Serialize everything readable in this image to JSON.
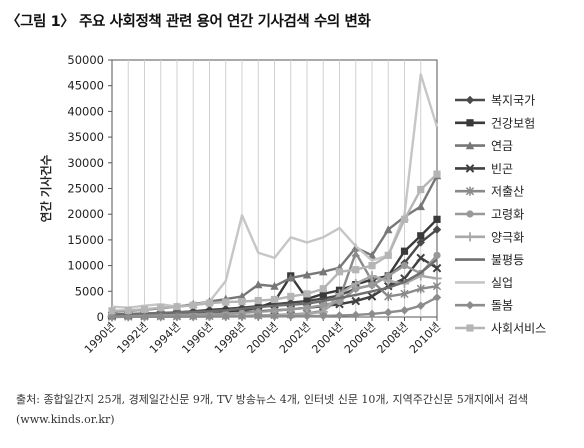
{
  "figure": {
    "title": "〈그림 1〉 주요 사회정책 관련 용어 연간 기사검색 수의 변화",
    "source_line1": "출처: 종합일간지 25개, 경제일간신문 9개, TV 방송뉴스 4개, 인터넷 신문 10개, 지역주간신문 5개지에서 검색",
    "source_line2": "(www.kinds.or.kr)"
  },
  "chart_data": {
    "type": "line",
    "ylabel": "연간 기사건수",
    "xlabel": "",
    "ylim": [
      0,
      50000
    ],
    "yticks": [
      "0",
      "5000",
      "10000",
      "15000",
      "20000",
      "25000",
      "30000",
      "35000",
      "40000",
      "45000",
      "50000"
    ],
    "xticks": [
      "1990년",
      "1992년",
      "1994년",
      "1996년",
      "1998년",
      "2000년",
      "2002년",
      "2004년",
      "2006년",
      "2008년",
      "2010년"
    ],
    "x": [
      1990,
      1991,
      1992,
      1993,
      1994,
      1995,
      1996,
      1997,
      1998,
      1999,
      2000,
      2001,
      2002,
      2003,
      2004,
      2005,
      2006,
      2007,
      2008,
      2009,
      2010
    ],
    "grid": "vertical",
    "legend": "right",
    "series": [
      {
        "name": "복지국가",
        "color": "#4a4a4a",
        "marker": "diamond",
        "values": [
          400,
          500,
          600,
          700,
          900,
          1100,
          1400,
          1600,
          1800,
          2100,
          2500,
          2800,
          3100,
          3600,
          4200,
          5500,
          6200,
          8000,
          10500,
          14500,
          17000
        ]
      },
      {
        "name": "건강보험",
        "color": "#3a3a3a",
        "marker": "square",
        "values": [
          200,
          300,
          400,
          500,
          600,
          700,
          900,
          1100,
          1300,
          1800,
          3000,
          8000,
          3500,
          4500,
          5200,
          6300,
          7300,
          8000,
          12800,
          15800,
          19000
        ]
      },
      {
        "name": "연금",
        "color": "#777777",
        "marker": "triangle",
        "values": [
          1000,
          1200,
          1400,
          1700,
          2000,
          2500,
          3000,
          3500,
          4000,
          6300,
          6000,
          7600,
          8200,
          8800,
          9600,
          13500,
          12000,
          17000,
          19500,
          21500,
          27500
        ]
      },
      {
        "name": "빈곤",
        "color": "#404040",
        "marker": "x",
        "values": [
          300,
          350,
          400,
          450,
          500,
          550,
          600,
          700,
          900,
          1100,
          1300,
          1500,
          1800,
          2100,
          2500,
          3100,
          4000,
          6000,
          7500,
          11500,
          9500
        ]
      },
      {
        "name": "저출산",
        "color": "#8a8a8a",
        "marker": "asterisk",
        "values": [
          50,
          60,
          80,
          100,
          120,
          150,
          180,
          200,
          250,
          300,
          400,
          500,
          700,
          1200,
          3500,
          12500,
          7000,
          4000,
          4500,
          5500,
          6000
        ]
      },
      {
        "name": "고령화",
        "color": "#999999",
        "marker": "circle",
        "values": [
          200,
          250,
          300,
          350,
          400,
          500,
          600,
          700,
          800,
          1000,
          1200,
          1500,
          1800,
          2300,
          3000,
          5500,
          6200,
          8000,
          10000,
          8500,
          12000
        ]
      },
      {
        "name": "양극화",
        "color": "#a8a8a8",
        "marker": "plus",
        "values": [
          50,
          60,
          70,
          80,
          90,
          100,
          120,
          150,
          200,
          250,
          300,
          400,
          600,
          1000,
          4500,
          6500,
          8000,
          7000,
          6500,
          8000,
          7500
        ]
      },
      {
        "name": "불평등",
        "color": "#6e6e6e",
        "marker": "none",
        "values": [
          500,
          600,
          700,
          800,
          900,
          1000,
          1100,
          1300,
          1600,
          1900,
          2200,
          2400,
          2600,
          3100,
          3700,
          4300,
          5000,
          5700,
          6800,
          8600,
          11200
        ]
      },
      {
        "name": "실업",
        "color": "#c6c6c6",
        "marker": "none",
        "values": [
          2000,
          1800,
          2200,
          2500,
          2000,
          2300,
          3000,
          7000,
          19800,
          12500,
          11500,
          15500,
          14500,
          15500,
          17300,
          13800,
          11000,
          12000,
          20000,
          47200,
          37000
        ]
      },
      {
        "name": "돌봄",
        "color": "#8c8c8c",
        "marker": "diamond",
        "values": [
          20,
          30,
          40,
          50,
          60,
          70,
          80,
          90,
          100,
          120,
          140,
          160,
          180,
          200,
          300,
          400,
          600,
          900,
          1300,
          2200,
          3800
        ]
      },
      {
        "name": "사회서비스",
        "color": "#b5b5b5",
        "marker": "square",
        "values": [
          1200,
          1300,
          1500,
          1800,
          2000,
          2300,
          2700,
          2900,
          3000,
          3200,
          3400,
          4000,
          4500,
          5500,
          8800,
          9200,
          10000,
          12000,
          19000,
          24800,
          27800
        ]
      }
    ]
  }
}
